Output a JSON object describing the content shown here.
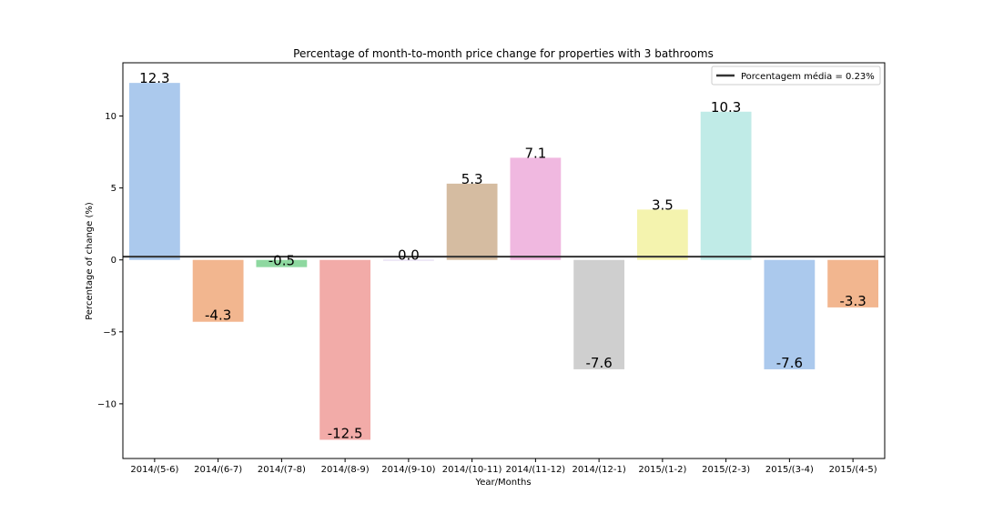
{
  "chart_data": {
    "type": "bar",
    "title": "Percentage of month-to-month price change for properties with 3 bathrooms",
    "xlabel": "Year/Months",
    "ylabel": "Percentage of change (%)",
    "categories": [
      "2014/(5-6)",
      "2014/(6-7)",
      "2014/(7-8)",
      "2014/(8-9)",
      "2014/(9-10)",
      "2014/(10-11)",
      "2014/(11-12)",
      "2014/(12-1)",
      "2015/(1-2)",
      "2015/(2-3)",
      "2015/(3-4)",
      "2015/(4-5)"
    ],
    "values": [
      12.3,
      -4.3,
      -0.5,
      -12.5,
      0.0,
      5.3,
      7.1,
      -7.6,
      3.5,
      10.3,
      -7.6,
      -3.3
    ],
    "value_labels": [
      "12.3",
      "-4.3",
      "-0.5",
      "-12.5",
      "0.0",
      "5.3",
      "7.1",
      "-7.6",
      "3.5",
      "10.3",
      "-7.6",
      "-3.3"
    ],
    "colors": [
      "#abc9ed",
      "#f2b68f",
      "#8ed8a0",
      "#f2aba8",
      "#c8b5e4",
      "#d5bca1",
      "#f0b8e0",
      "#cfcfcf",
      "#f4f3ae",
      "#c0ebe7",
      "#abc9ed",
      "#f2b68f"
    ],
    "ylim": [
      -13.8,
      13.7
    ],
    "yticks": [
      -10,
      -5,
      0,
      5,
      10
    ],
    "ytick_labels": [
      "−10",
      "−5",
      "0",
      "5",
      "10"
    ],
    "mean_line": {
      "value": 0.23,
      "color": "#333333"
    },
    "legend": {
      "position": "top-right",
      "entries": [
        "Porcentagem média = 0.23%"
      ]
    },
    "grid": false
  }
}
